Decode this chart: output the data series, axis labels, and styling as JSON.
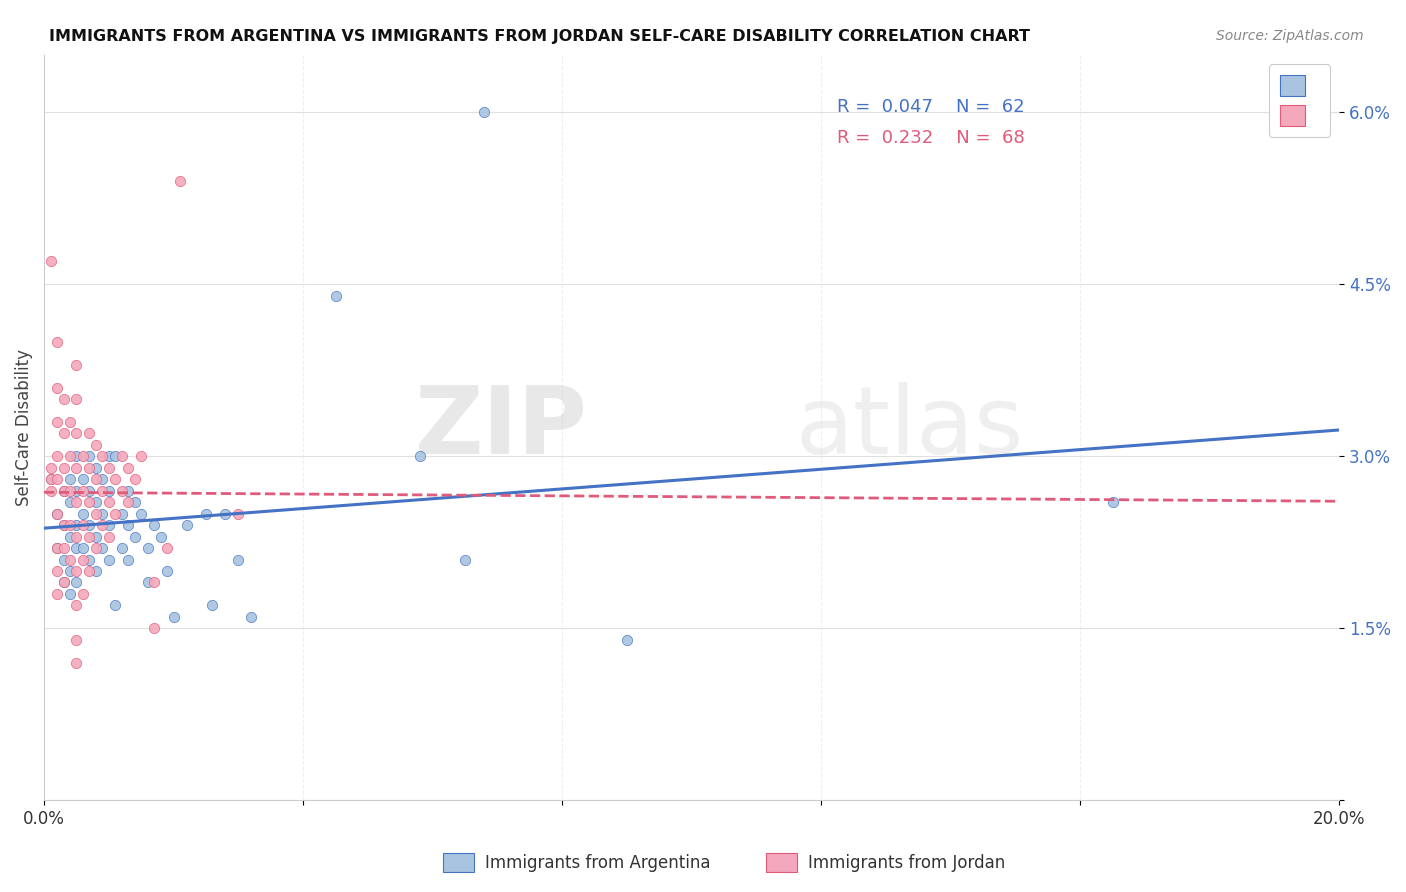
{
  "title": "IMMIGRANTS FROM ARGENTINA VS IMMIGRANTS FROM JORDAN SELF-CARE DISABILITY CORRELATION CHART",
  "source": "Source: ZipAtlas.com",
  "ylabel": "Self-Care Disability",
  "xlim": [
    0.0,
    0.2
  ],
  "ylim": [
    0.0,
    0.065
  ],
  "xticks": [
    0.0,
    0.04,
    0.08,
    0.12,
    0.16,
    0.2
  ],
  "xticklabels": [
    "0.0%",
    "",
    "",
    "",
    "",
    "20.0%"
  ],
  "yticks": [
    0.0,
    0.015,
    0.03,
    0.045,
    0.06
  ],
  "yticklabels": [
    "",
    "1.5%",
    "3.0%",
    "4.5%",
    "6.0%"
  ],
  "color_argentina": "#a8c4e0",
  "color_jordan": "#f4a8bb",
  "line_color_argentina": "#4472c4",
  "line_color_jordan": "#e05a7a",
  "watermark_zip": "ZIP",
  "watermark_atlas": "atlas",
  "argentina_points": [
    [
      0.001,
      0.028
    ],
    [
      0.002,
      0.025
    ],
    [
      0.002,
      0.022
    ],
    [
      0.003,
      0.027
    ],
    [
      0.003,
      0.024
    ],
    [
      0.003,
      0.021
    ],
    [
      0.003,
      0.019
    ],
    [
      0.004,
      0.028
    ],
    [
      0.004,
      0.026
    ],
    [
      0.004,
      0.023
    ],
    [
      0.004,
      0.02
    ],
    [
      0.004,
      0.018
    ],
    [
      0.005,
      0.03
    ],
    [
      0.005,
      0.027
    ],
    [
      0.005,
      0.024
    ],
    [
      0.005,
      0.022
    ],
    [
      0.005,
      0.019
    ],
    [
      0.006,
      0.028
    ],
    [
      0.006,
      0.025
    ],
    [
      0.006,
      0.022
    ],
    [
      0.007,
      0.03
    ],
    [
      0.007,
      0.027
    ],
    [
      0.007,
      0.024
    ],
    [
      0.007,
      0.021
    ],
    [
      0.008,
      0.029
    ],
    [
      0.008,
      0.026
    ],
    [
      0.008,
      0.023
    ],
    [
      0.008,
      0.02
    ],
    [
      0.009,
      0.028
    ],
    [
      0.009,
      0.025
    ],
    [
      0.009,
      0.022
    ],
    [
      0.01,
      0.03
    ],
    [
      0.01,
      0.027
    ],
    [
      0.01,
      0.024
    ],
    [
      0.01,
      0.021
    ],
    [
      0.011,
      0.03
    ],
    [
      0.011,
      0.017
    ],
    [
      0.012,
      0.025
    ],
    [
      0.012,
      0.022
    ],
    [
      0.013,
      0.027
    ],
    [
      0.013,
      0.024
    ],
    [
      0.013,
      0.021
    ],
    [
      0.014,
      0.026
    ],
    [
      0.014,
      0.023
    ],
    [
      0.015,
      0.025
    ],
    [
      0.016,
      0.022
    ],
    [
      0.016,
      0.019
    ],
    [
      0.017,
      0.024
    ],
    [
      0.018,
      0.023
    ],
    [
      0.019,
      0.02
    ],
    [
      0.02,
      0.016
    ],
    [
      0.022,
      0.024
    ],
    [
      0.025,
      0.025
    ],
    [
      0.026,
      0.017
    ],
    [
      0.028,
      0.025
    ],
    [
      0.03,
      0.021
    ],
    [
      0.032,
      0.016
    ],
    [
      0.045,
      0.044
    ],
    [
      0.058,
      0.03
    ],
    [
      0.065,
      0.021
    ],
    [
      0.068,
      0.06
    ],
    [
      0.09,
      0.014
    ],
    [
      0.165,
      0.026
    ]
  ],
  "jordan_points": [
    [
      0.001,
      0.047
    ],
    [
      0.001,
      0.029
    ],
    [
      0.001,
      0.028
    ],
    [
      0.001,
      0.027
    ],
    [
      0.002,
      0.04
    ],
    [
      0.002,
      0.036
    ],
    [
      0.002,
      0.033
    ],
    [
      0.002,
      0.03
    ],
    [
      0.002,
      0.028
    ],
    [
      0.002,
      0.025
    ],
    [
      0.002,
      0.022
    ],
    [
      0.002,
      0.02
    ],
    [
      0.002,
      0.018
    ],
    [
      0.003,
      0.035
    ],
    [
      0.003,
      0.032
    ],
    [
      0.003,
      0.029
    ],
    [
      0.003,
      0.027
    ],
    [
      0.003,
      0.024
    ],
    [
      0.003,
      0.022
    ],
    [
      0.003,
      0.019
    ],
    [
      0.004,
      0.033
    ],
    [
      0.004,
      0.03
    ],
    [
      0.004,
      0.027
    ],
    [
      0.004,
      0.024
    ],
    [
      0.004,
      0.021
    ],
    [
      0.005,
      0.038
    ],
    [
      0.005,
      0.035
    ],
    [
      0.005,
      0.032
    ],
    [
      0.005,
      0.029
    ],
    [
      0.005,
      0.026
    ],
    [
      0.005,
      0.023
    ],
    [
      0.005,
      0.02
    ],
    [
      0.005,
      0.017
    ],
    [
      0.005,
      0.014
    ],
    [
      0.005,
      0.012
    ],
    [
      0.006,
      0.03
    ],
    [
      0.006,
      0.027
    ],
    [
      0.006,
      0.024
    ],
    [
      0.006,
      0.021
    ],
    [
      0.006,
      0.018
    ],
    [
      0.007,
      0.032
    ],
    [
      0.007,
      0.029
    ],
    [
      0.007,
      0.026
    ],
    [
      0.007,
      0.023
    ],
    [
      0.007,
      0.02
    ],
    [
      0.008,
      0.031
    ],
    [
      0.008,
      0.028
    ],
    [
      0.008,
      0.025
    ],
    [
      0.008,
      0.022
    ],
    [
      0.009,
      0.03
    ],
    [
      0.009,
      0.027
    ],
    [
      0.009,
      0.024
    ],
    [
      0.01,
      0.029
    ],
    [
      0.01,
      0.026
    ],
    [
      0.01,
      0.023
    ],
    [
      0.011,
      0.028
    ],
    [
      0.011,
      0.025
    ],
    [
      0.012,
      0.03
    ],
    [
      0.012,
      0.027
    ],
    [
      0.013,
      0.029
    ],
    [
      0.013,
      0.026
    ],
    [
      0.014,
      0.028
    ],
    [
      0.015,
      0.03
    ],
    [
      0.017,
      0.019
    ],
    [
      0.017,
      0.015
    ],
    [
      0.019,
      0.022
    ],
    [
      0.021,
      0.054
    ],
    [
      0.03,
      0.025
    ]
  ]
}
